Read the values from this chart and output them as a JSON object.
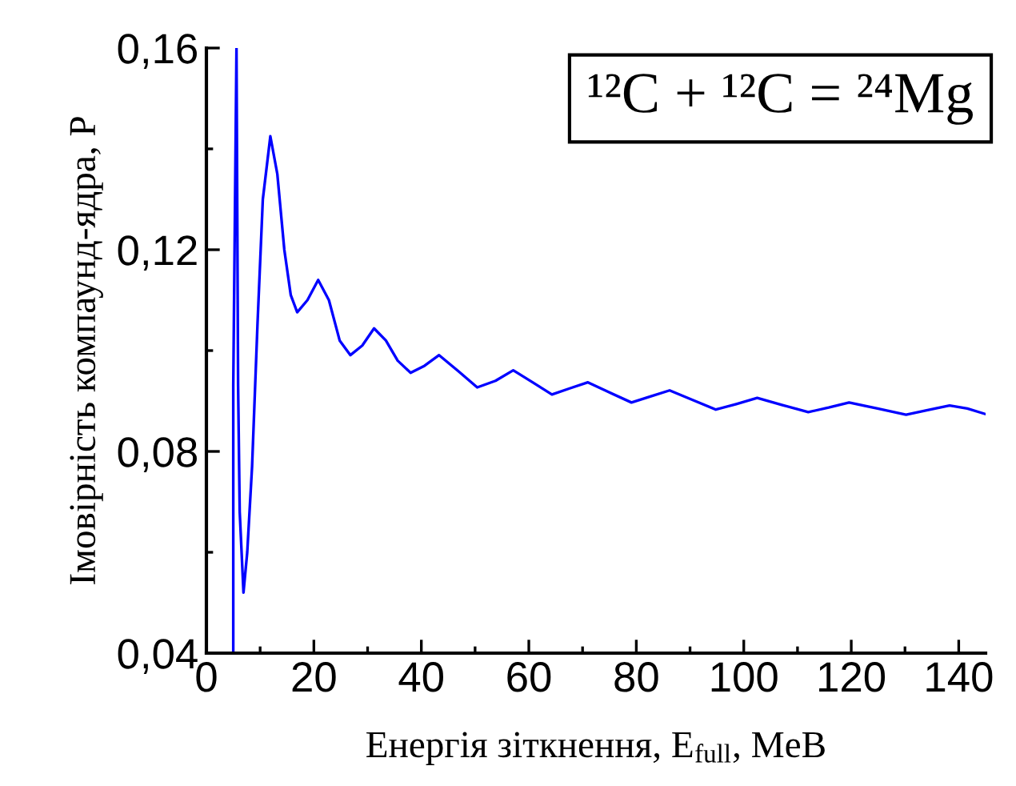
{
  "chart_data": {
    "type": "line",
    "xlabel": "Енергія зіткнення, E$_{full}$, MeB",
    "ylabel": "Імовірність компаунд-ядра, P",
    "annotations": [
      "¹²C + ¹²C = ²⁴Mg"
    ],
    "xlim": [
      0,
      145
    ],
    "xticks": [
      0,
      20,
      40,
      60,
      80,
      100,
      120,
      140
    ],
    "ylim": [
      0.04,
      0.16
    ],
    "yticks": [
      {
        "value": 0.04,
        "label": "0,04"
      },
      {
        "value": 0.08,
        "label": "0,08"
      },
      {
        "value": 0.12,
        "label": "0,12"
      },
      {
        "value": 0.16,
        "label": "0,16"
      }
    ],
    "grid": false,
    "marker": "none",
    "line_style": "solid",
    "series": [
      {
        "color": "#0000ff",
        "x": [
          5.0,
          5.0,
          5.6,
          5.9,
          6.2,
          6.9,
          7.6,
          8.5,
          9.5,
          10.5,
          11.9,
          13.2,
          14.5,
          15.7,
          16.9,
          18.8,
          20.8,
          22.8,
          24.8,
          26.8,
          29.0,
          31.2,
          33.4,
          35.6,
          38.0,
          40.6,
          43.3,
          46.8,
          50.4,
          53.8,
          57.1,
          60.7,
          64.3,
          67.6,
          71.0,
          75.0,
          79.1,
          82.6,
          86.2,
          90.5,
          94.8,
          98.6,
          102.5,
          107.2,
          112.0,
          115.8,
          119.6,
          124.9,
          130.2,
          134.2,
          138.3,
          141.6,
          145.0
        ],
        "values": [
          0.04,
          0.093,
          0.16,
          0.093,
          0.068,
          0.052,
          0.06,
          0.077,
          0.105,
          0.13,
          0.1425,
          0.135,
          0.12,
          0.111,
          0.1076,
          0.11,
          0.114,
          0.11,
          0.102,
          0.0991,
          0.101,
          0.1044,
          0.102,
          0.098,
          0.0956,
          0.097,
          0.0991,
          0.096,
          0.0927,
          0.094,
          0.0961,
          0.0937,
          0.0913,
          0.0925,
          0.0937,
          0.0917,
          0.0897,
          0.0909,
          0.0921,
          0.0902,
          0.0883,
          0.0894,
          0.0906,
          0.0892,
          0.0878,
          0.0887,
          0.0897,
          0.0885,
          0.0873,
          0.0882,
          0.0891,
          0.0885,
          0.0874
        ]
      }
    ]
  }
}
